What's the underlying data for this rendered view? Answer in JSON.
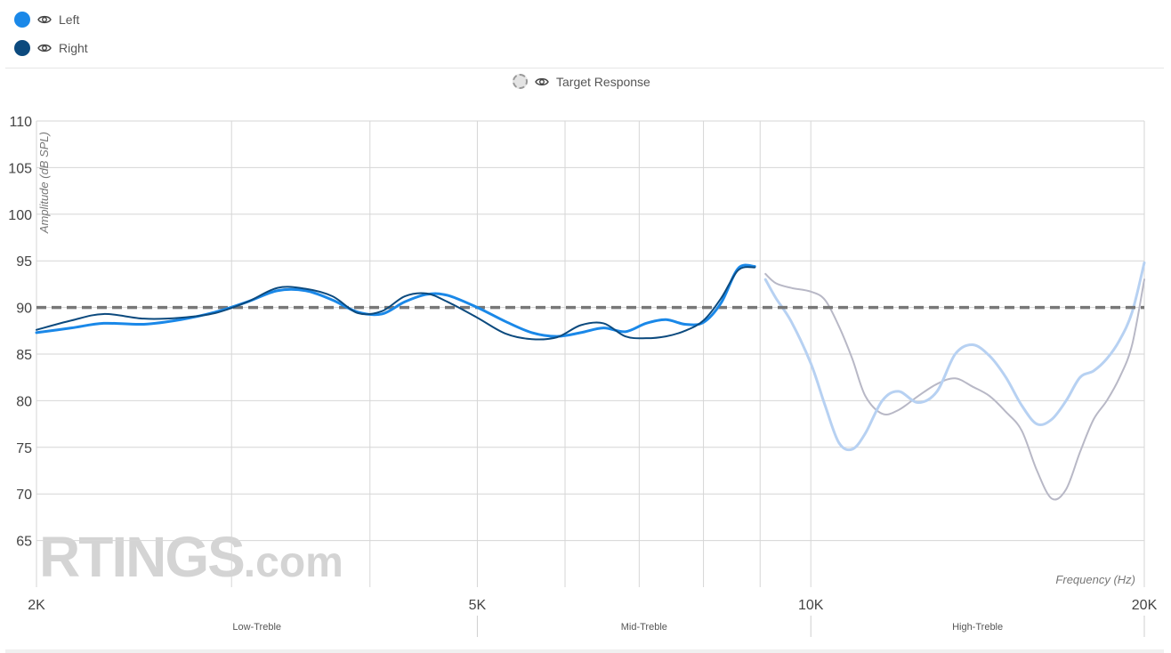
{
  "legend": {
    "items": [
      {
        "label": "Left",
        "color": "#1a88e8",
        "icon": "eye-icon"
      },
      {
        "label": "Right",
        "color": "#0c4a7e",
        "icon": "eye-icon"
      }
    ],
    "target": {
      "label": "Target Response",
      "icon": "eye-icon"
    }
  },
  "watermark": {
    "brand": "RTINGS",
    "suffix": ".com"
  },
  "chart_data": {
    "type": "line",
    "xlabel": "Frequency (Hz)",
    "ylabel": "Amplitude (dB SPL)",
    "x_scale": "log",
    "xlim": [
      2000,
      20000
    ],
    "ylim": [
      60,
      110
    ],
    "y_ticks": [
      65,
      70,
      75,
      80,
      85,
      90,
      95,
      100,
      105,
      110
    ],
    "x_ticks": [
      {
        "value": 2000,
        "label": "2K"
      },
      {
        "value": 5000,
        "label": "5K"
      },
      {
        "value": 10000,
        "label": "10K"
      },
      {
        "value": 20000,
        "label": "20K"
      }
    ],
    "x_gridlines": [
      2000,
      3000,
      4000,
      5000,
      6000,
      7000,
      8000,
      9000,
      10000,
      20000
    ],
    "grid": true,
    "bands": [
      {
        "label": "Low-Treble",
        "from": 2000,
        "to": 5000
      },
      {
        "label": "Mid-Treble",
        "from": 5000,
        "to": 10000
      },
      {
        "label": "High-Treble",
        "from": 10000,
        "to": 20000
      }
    ],
    "target": {
      "name": "Target Response",
      "value": 90
    },
    "series": [
      {
        "name": "Left",
        "color": "#1a88e8",
        "faded_color": "#b7d1f2",
        "faded_after": 9000,
        "x": [
          2000,
          2150,
          2300,
          2500,
          2700,
          2900,
          3100,
          3300,
          3500,
          3700,
          3900,
          4100,
          4300,
          4500,
          4700,
          5000,
          5300,
          5600,
          5900,
          6200,
          6500,
          6800,
          7100,
          7400,
          7700,
          8000,
          8300,
          8600,
          8900,
          9100,
          9300,
          9600,
          10000,
          10300,
          10600,
          10900,
          11200,
          11600,
          12000,
          12500,
          13000,
          13500,
          14000,
          14500,
          15000,
          15500,
          16000,
          16500,
          17000,
          17500,
          18000,
          18500,
          19000,
          19500,
          20000
        ],
        "y": [
          87.3,
          87.8,
          88.3,
          88.2,
          88.7,
          89.5,
          90.6,
          91.8,
          91.8,
          90.8,
          89.5,
          89.3,
          90.6,
          91.4,
          91.3,
          90.0,
          88.5,
          87.3,
          86.9,
          87.3,
          87.8,
          87.4,
          88.3,
          88.7,
          88.2,
          88.4,
          90.5,
          94.2,
          94.4,
          93.0,
          91.0,
          88.5,
          84.0,
          79.5,
          75.5,
          74.8,
          76.5,
          80.0,
          81.0,
          79.8,
          81.0,
          85.0,
          86.0,
          84.8,
          82.5,
          79.5,
          77.5,
          78.0,
          80.0,
          82.5,
          83.2,
          84.5,
          86.5,
          89.5,
          94.8
        ]
      },
      {
        "name": "Right",
        "color": "#0c4a7e",
        "faded_color": "#b8b8c6",
        "faded_after": 9000,
        "x": [
          2000,
          2150,
          2300,
          2500,
          2700,
          2900,
          3100,
          3300,
          3500,
          3700,
          3900,
          4100,
          4300,
          4500,
          4700,
          5000,
          5300,
          5600,
          5900,
          6200,
          6500,
          6800,
          7100,
          7400,
          7700,
          8000,
          8300,
          8600,
          8900,
          9100,
          9300,
          9600,
          10000,
          10300,
          10600,
          10900,
          11200,
          11600,
          12000,
          12500,
          13000,
          13500,
          14000,
          14500,
          15000,
          15500,
          16000,
          16500,
          17000,
          17500,
          18000,
          18500,
          19000,
          19500,
          20000
        ],
        "y": [
          87.6,
          88.6,
          89.3,
          88.8,
          88.9,
          89.4,
          90.6,
          92.1,
          92.0,
          91.2,
          89.4,
          89.6,
          91.2,
          91.5,
          90.6,
          88.9,
          87.2,
          86.6,
          86.8,
          88.1,
          88.3,
          86.9,
          86.7,
          86.9,
          87.5,
          88.6,
          91.0,
          94.0,
          94.3,
          93.6,
          92.6,
          92.1,
          91.7,
          90.8,
          88.0,
          84.5,
          80.5,
          78.6,
          79.0,
          80.5,
          81.8,
          82.4,
          81.5,
          80.5,
          78.8,
          76.8,
          72.5,
          69.5,
          70.5,
          74.5,
          78.0,
          80.0,
          82.5,
          86.0,
          93.0
        ]
      }
    ]
  }
}
